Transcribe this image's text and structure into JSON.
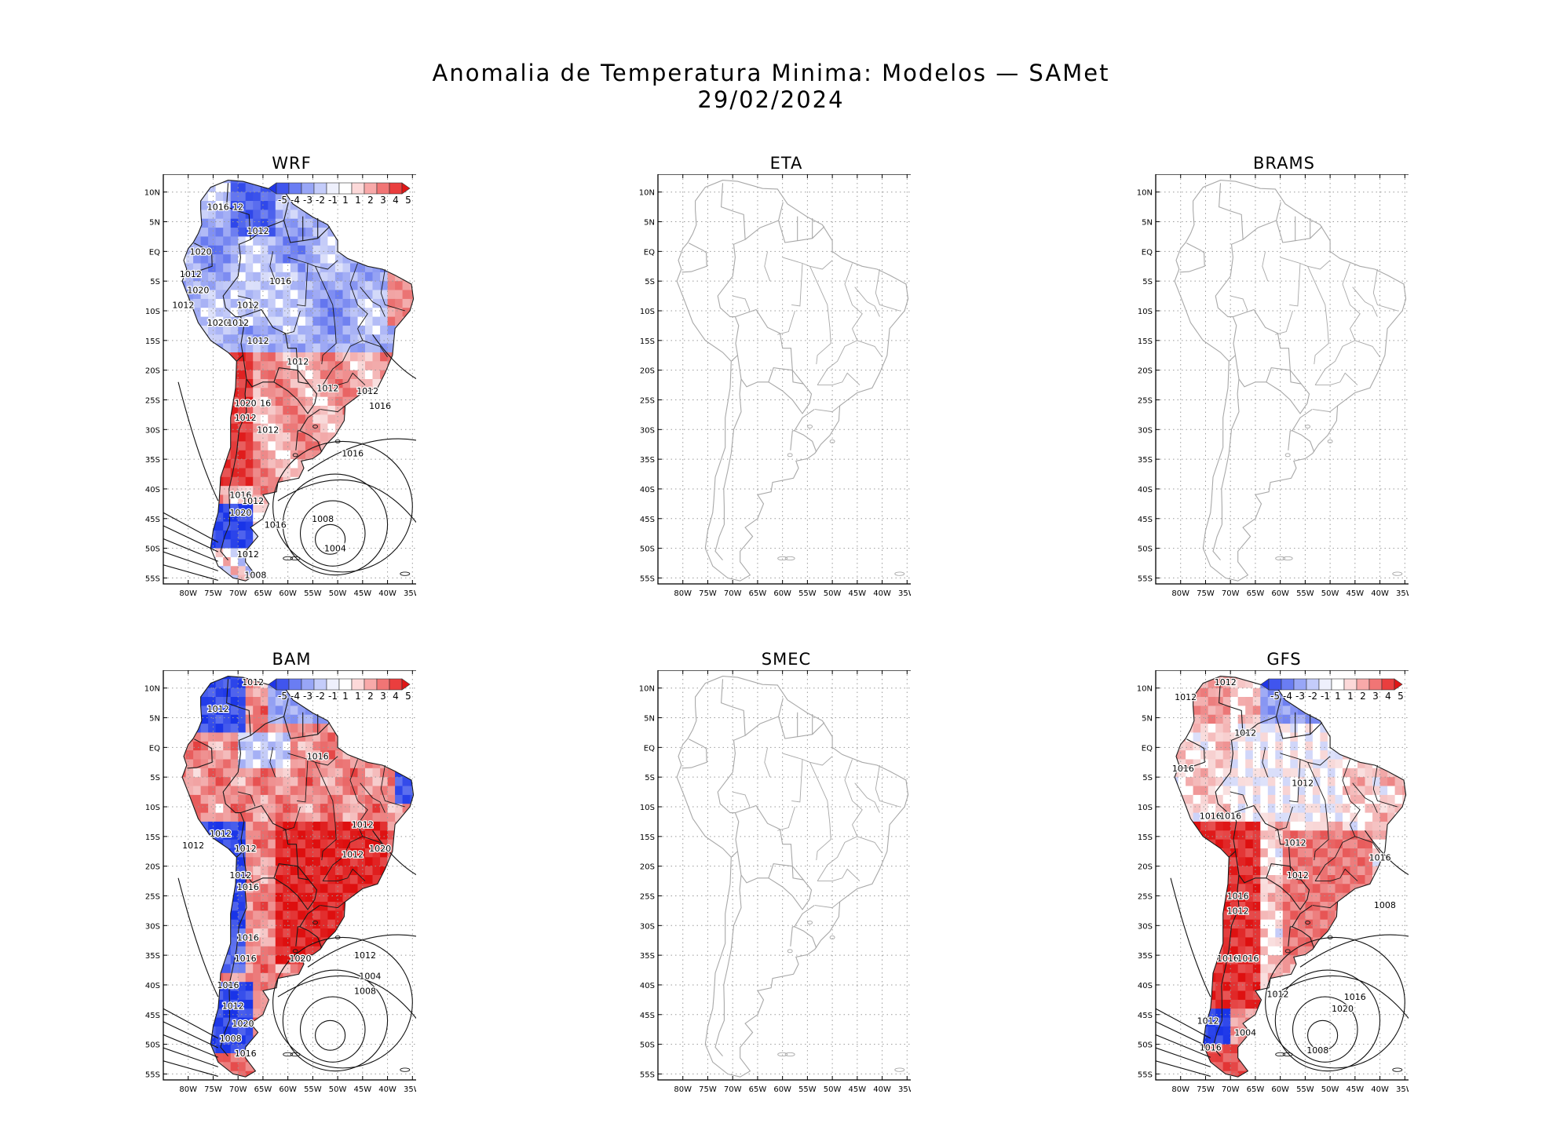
{
  "title": {
    "line1": "Anomalia de Temperatura Minima: Modelos — SAMet",
    "line2": "29/02/2024"
  },
  "axes": {
    "lat_labels": [
      "10N",
      "5N",
      "EQ",
      "5S",
      "10S",
      "15S",
      "20S",
      "25S",
      "30S",
      "35S",
      "40S",
      "45S",
      "50S",
      "55S"
    ],
    "lon_labels": [
      "80W",
      "75W",
      "70W",
      "65W",
      "60W",
      "55W",
      "50W",
      "45W",
      "40W",
      "35W"
    ]
  },
  "colorbar": {
    "labels": [
      "-5",
      "-4",
      "-3",
      "-2",
      "-1",
      "1",
      "1",
      "2",
      "3",
      "4",
      "5"
    ],
    "colors": [
      "#1f35e8",
      "#4055ee",
      "#6a7df3",
      "#98a6f7",
      "#c4ccfa",
      "#eef0fc",
      "#ffffff",
      "#fcd9d9",
      "#f8a9a9",
      "#f17575",
      "#ea3e3e",
      "#e01616"
    ]
  },
  "panels": [
    {
      "id": "wrf",
      "name": "WRF",
      "has_data": true,
      "pattern": "wrf",
      "isobar_labels": [
        "1016",
        "12",
        "1012",
        "1020",
        "1012",
        "1020",
        "1012",
        "1020",
        "1012",
        "1016",
        "1012",
        "1012",
        "1012",
        "1012",
        "1020",
        "16",
        "1012",
        "1012",
        "1012",
        "1016",
        "1016",
        "1016",
        "1012",
        "1020",
        "1008",
        "1016",
        "1012",
        "1004",
        "1008"
      ]
    },
    {
      "id": "eta",
      "name": "ETA",
      "has_data": false,
      "pattern": "none",
      "isobar_labels": []
    },
    {
      "id": "brams",
      "name": "BRAMS",
      "has_data": false,
      "pattern": "none",
      "isobar_labels": []
    },
    {
      "id": "bam",
      "name": "BAM",
      "has_data": true,
      "pattern": "bam",
      "isobar_labels": [
        "1012",
        "1012",
        "1016",
        "1012",
        "1012",
        "1012",
        "1012",
        "1012",
        "1020",
        "1012",
        "1016",
        "1016",
        "1020",
        "1016",
        "1016",
        "1012",
        "1020",
        "1008",
        "1016",
        "1012",
        "1004",
        "1008"
      ]
    },
    {
      "id": "smec",
      "name": "SMEC",
      "has_data": false,
      "pattern": "none",
      "isobar_labels": []
    },
    {
      "id": "gfs",
      "name": "GFS",
      "has_data": true,
      "pattern": "gfs",
      "isobar_labels": [
        "1012",
        "1012",
        "1012",
        "1016",
        "1012",
        "1016",
        "1016",
        "1012",
        "1012",
        "1016",
        "1016",
        "1012",
        "1016",
        "1016",
        "1012",
        "1016",
        "1008",
        "1020",
        "1012",
        "1016",
        "1004",
        "1008"
      ]
    }
  ]
}
